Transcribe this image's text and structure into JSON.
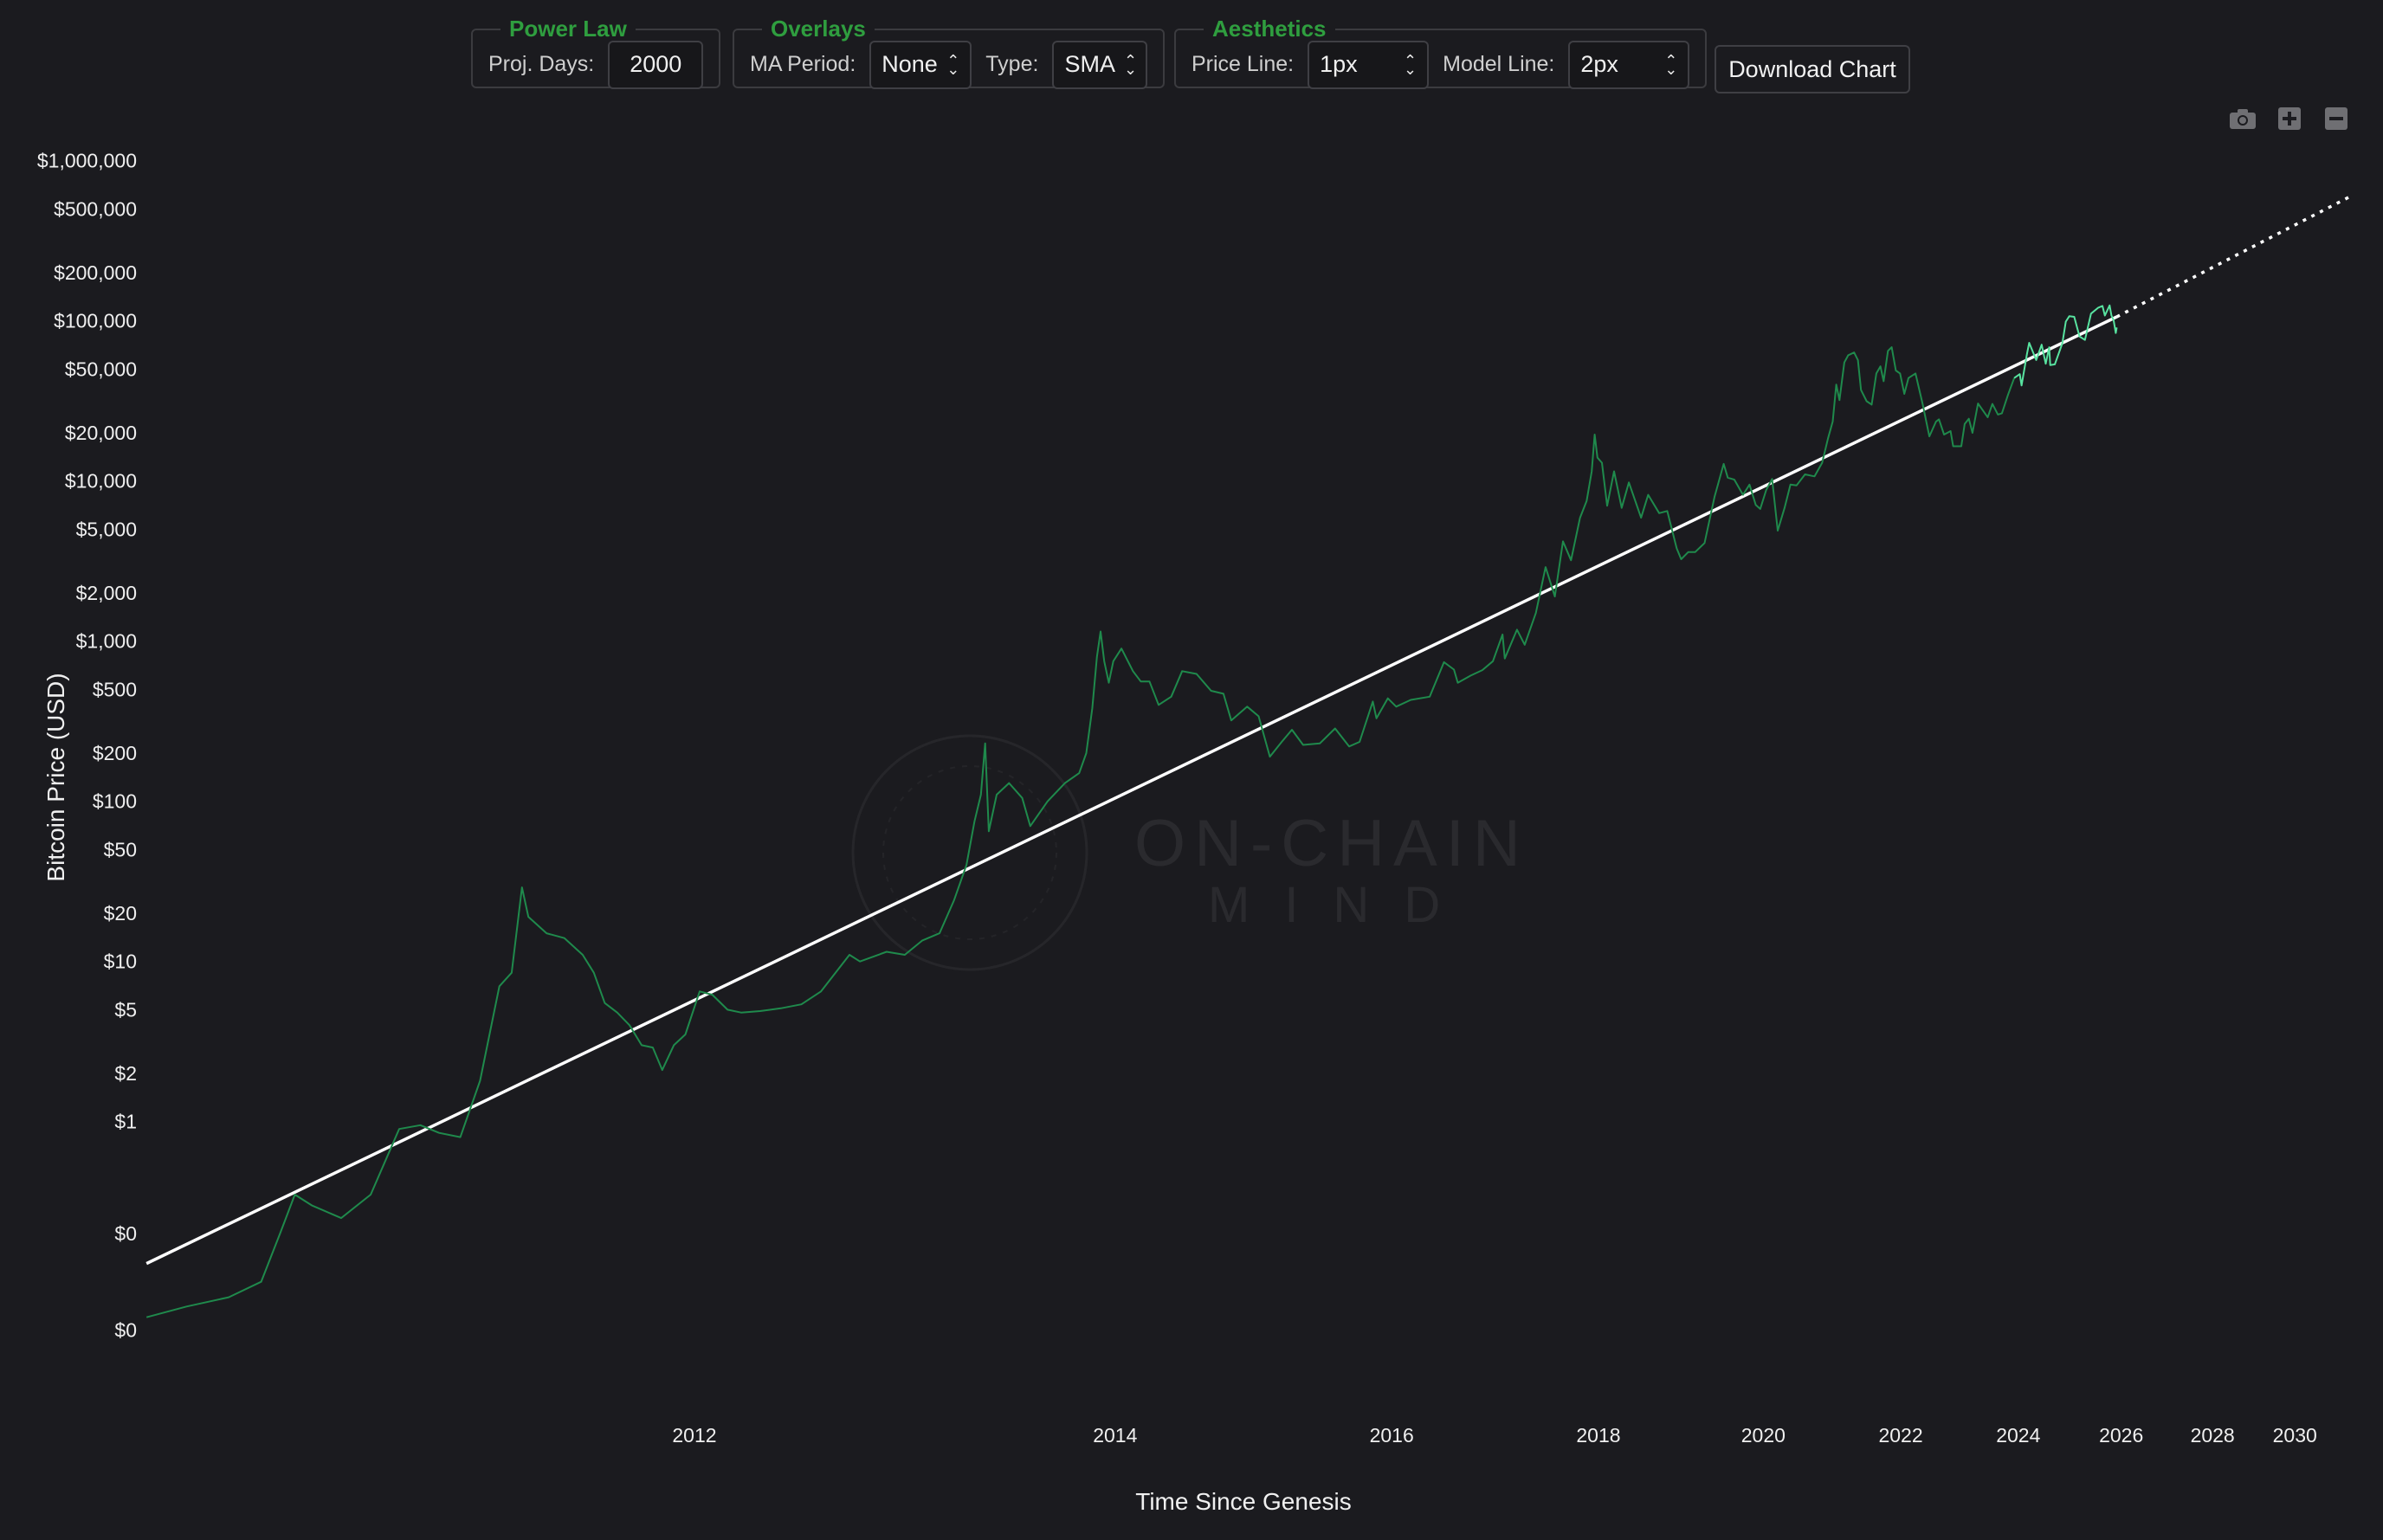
{
  "controls": {
    "power_law": {
      "legend": "Power Law",
      "proj_days_label": "Proj. Days:",
      "proj_days_value": "2000"
    },
    "overlays": {
      "legend": "Overlays",
      "ma_period_label": "MA Period:",
      "ma_period_value": "None",
      "type_label": "Type:",
      "type_value": "SMA"
    },
    "aesthetics": {
      "legend": "Aesthetics",
      "price_line_label": "Price Line:",
      "price_line_value": "1px",
      "model_line_label": "Model Line:",
      "model_line_value": "2px"
    },
    "download_label": "Download Chart"
  },
  "modebar": {
    "icons": [
      "camera-icon",
      "zoom-in-icon",
      "zoom-out-icon"
    ]
  },
  "watermark": {
    "line1": "ON-CHAIN",
    "line2": "MIND"
  },
  "colors": {
    "background": "#1b1b1f",
    "price": "#1f8a4c",
    "price_recent": "#58e3a0",
    "model": "#ffffff",
    "legend_green": "#2f9e3f"
  },
  "chart_data": {
    "type": "line",
    "title": "",
    "xlabel": "Time Since Genesis",
    "ylabel": "Bitcoin Price (USD)",
    "y_scale": "log",
    "x_scale": "log",
    "grid": false,
    "x_range": [
      "2010-07-01",
      "2031-06-01"
    ],
    "y_range": [
      0.02,
      2000000
    ],
    "x_ticks": [
      {
        "date": "2012-01-01",
        "label": "2012"
      },
      {
        "date": "2014-01-01",
        "label": "2014"
      },
      {
        "date": "2016-01-01",
        "label": "2016"
      },
      {
        "date": "2018-01-01",
        "label": "2018"
      },
      {
        "date": "2020-01-01",
        "label": "2020"
      },
      {
        "date": "2022-01-01",
        "label": "2022"
      },
      {
        "date": "2024-01-01",
        "label": "2024"
      },
      {
        "date": "2026-01-01",
        "label": "2026"
      },
      {
        "date": "2028-01-01",
        "label": "2028"
      },
      {
        "date": "2030-01-01",
        "label": "2030"
      }
    ],
    "y_ticks": [
      {
        "value": 0.05,
        "label": "$0"
      },
      {
        "value": 0.2,
        "label": "$0"
      },
      {
        "value": 1,
        "label": "$1"
      },
      {
        "value": 2,
        "label": "$2"
      },
      {
        "value": 5,
        "label": "$5"
      },
      {
        "value": 10,
        "label": "$10"
      },
      {
        "value": 20,
        "label": "$20"
      },
      {
        "value": 50,
        "label": "$50"
      },
      {
        "value": 100,
        "label": "$100"
      },
      {
        "value": 200,
        "label": "$200"
      },
      {
        "value": 500,
        "label": "$500"
      },
      {
        "value": 1000,
        "label": "$1,000"
      },
      {
        "value": 2000,
        "label": "$2,000"
      },
      {
        "value": 5000,
        "label": "$5,000"
      },
      {
        "value": 10000,
        "label": "$10,000"
      },
      {
        "value": 20000,
        "label": "$20,000"
      },
      {
        "value": 50000,
        "label": "$50,000"
      },
      {
        "value": 100000,
        "label": "$100,000"
      },
      {
        "value": 200000,
        "label": "$200,000"
      },
      {
        "value": 500000,
        "label": "$500,000"
      },
      {
        "value": 1000000,
        "label": "$1,000,000"
      }
    ],
    "series": [
      {
        "kind": "price",
        "points": [
          [
            "2010-07-18",
            0.06
          ],
          [
            "2010-08-15",
            0.07
          ],
          [
            "2010-09-15",
            0.08
          ],
          [
            "2010-10-10",
            0.1
          ],
          [
            "2010-10-25",
            0.2
          ],
          [
            "2010-11-06",
            0.35
          ],
          [
            "2010-11-20",
            0.3
          ],
          [
            "2010-12-15",
            0.25
          ],
          [
            "2011-01-10",
            0.35
          ],
          [
            "2011-02-05",
            0.9
          ],
          [
            "2011-02-25",
            0.95
          ],
          [
            "2011-03-15",
            0.85
          ],
          [
            "2011-04-05",
            0.8
          ],
          [
            "2011-04-25",
            1.8
          ],
          [
            "2011-05-15",
            7
          ],
          [
            "2011-05-28",
            8.5
          ],
          [
            "2011-06-08",
            29
          ],
          [
            "2011-06-15",
            19
          ],
          [
            "2011-07-05",
            15
          ],
          [
            "2011-07-25",
            14
          ],
          [
            "2011-08-15",
            11
          ],
          [
            "2011-08-28",
            8.5
          ],
          [
            "2011-09-10",
            5.5
          ],
          [
            "2011-09-25",
            4.8
          ],
          [
            "2011-10-10",
            4
          ],
          [
            "2011-10-25",
            3
          ],
          [
            "2011-11-08",
            2.9
          ],
          [
            "2011-11-20",
            2.1
          ],
          [
            "2011-12-05",
            3
          ],
          [
            "2011-12-20",
            3.5
          ],
          [
            "2012-01-08",
            6.5
          ],
          [
            "2012-01-25",
            6.2
          ],
          [
            "2012-02-15",
            5
          ],
          [
            "2012-03-05",
            4.8
          ],
          [
            "2012-04-01",
            4.9
          ],
          [
            "2012-05-01",
            5.1
          ],
          [
            "2012-06-01",
            5.4
          ],
          [
            "2012-07-01",
            6.5
          ],
          [
            "2012-08-15",
            11
          ],
          [
            "2012-09-01",
            10
          ],
          [
            "2012-10-15",
            11.5
          ],
          [
            "2012-11-15",
            11
          ],
          [
            "2012-12-15",
            13.5
          ],
          [
            "2013-01-15",
            15
          ],
          [
            "2013-02-10",
            24
          ],
          [
            "2013-03-05",
            40
          ],
          [
            "2013-03-20",
            75
          ],
          [
            "2013-04-01",
            110
          ],
          [
            "2013-04-09",
            230
          ],
          [
            "2013-04-16",
            65
          ],
          [
            "2013-05-01",
            110
          ],
          [
            "2013-05-25",
            130
          ],
          [
            "2013-06-20",
            105
          ],
          [
            "2013-07-06",
            70
          ],
          [
            "2013-08-10",
            100
          ],
          [
            "2013-09-15",
            130
          ],
          [
            "2013-10-15",
            150
          ],
          [
            "2013-10-30",
            200
          ],
          [
            "2013-11-12",
            380
          ],
          [
            "2013-11-22",
            800
          ],
          [
            "2013-11-30",
            1150
          ],
          [
            "2013-12-08",
            750
          ],
          [
            "2013-12-18",
            550
          ],
          [
            "2013-12-28",
            750
          ],
          [
            "2014-01-15",
            900
          ],
          [
            "2014-02-10",
            650
          ],
          [
            "2014-02-28",
            560
          ],
          [
            "2014-03-20",
            560
          ],
          [
            "2014-04-10",
            400
          ],
          [
            "2014-05-10",
            450
          ],
          [
            "2014-06-05",
            650
          ],
          [
            "2014-07-10",
            625
          ],
          [
            "2014-08-15",
            490
          ],
          [
            "2014-09-15",
            470
          ],
          [
            "2014-10-05",
            320
          ],
          [
            "2014-11-15",
            390
          ],
          [
            "2014-12-15",
            340
          ],
          [
            "2015-01-14",
            190
          ],
          [
            "2015-02-15",
            235
          ],
          [
            "2015-03-15",
            280
          ],
          [
            "2015-04-15",
            225
          ],
          [
            "2015-06-01",
            230
          ],
          [
            "2015-07-15",
            285
          ],
          [
            "2015-08-25",
            220
          ],
          [
            "2015-09-25",
            235
          ],
          [
            "2015-11-04",
            420
          ],
          [
            "2015-11-15",
            330
          ],
          [
            "2015-12-20",
            440
          ],
          [
            "2016-01-15",
            390
          ],
          [
            "2016-03-01",
            430
          ],
          [
            "2016-05-01",
            450
          ],
          [
            "2016-06-17",
            740
          ],
          [
            "2016-07-20",
            665
          ],
          [
            "2016-08-02",
            550
          ],
          [
            "2016-09-15",
            610
          ],
          [
            "2016-10-25",
            660
          ],
          [
            "2016-12-01",
            750
          ],
          [
            "2017-01-04",
            1100
          ],
          [
            "2017-01-12",
            780
          ],
          [
            "2017-02-25",
            1180
          ],
          [
            "2017-03-25",
            950
          ],
          [
            "2017-05-05",
            1500
          ],
          [
            "2017-06-10",
            2900
          ],
          [
            "2017-07-15",
            1900
          ],
          [
            "2017-08-15",
            4200
          ],
          [
            "2017-09-15",
            3200
          ],
          [
            "2017-10-20",
            5900
          ],
          [
            "2017-11-15",
            7500
          ],
          [
            "2017-12-05",
            11500
          ],
          [
            "2017-12-17",
            19500
          ],
          [
            "2017-12-28",
            14000
          ],
          [
            "2018-01-15",
            13000
          ],
          [
            "2018-02-05",
            7000
          ],
          [
            "2018-03-05",
            11500
          ],
          [
            "2018-04-05",
            6800
          ],
          [
            "2018-05-05",
            9800
          ],
          [
            "2018-06-25",
            5900
          ],
          [
            "2018-07-25",
            8200
          ],
          [
            "2018-09-10",
            6300
          ],
          [
            "2018-10-15",
            6500
          ],
          [
            "2018-11-25",
            3800
          ],
          [
            "2018-12-15",
            3250
          ],
          [
            "2019-01-15",
            3600
          ],
          [
            "2019-02-15",
            3600
          ],
          [
            "2019-03-30",
            4100
          ],
          [
            "2019-05-15",
            8000
          ],
          [
            "2019-06-26",
            12800
          ],
          [
            "2019-07-15",
            10500
          ],
          [
            "2019-08-15",
            10200
          ],
          [
            "2019-09-25",
            8200
          ],
          [
            "2019-10-26",
            9500
          ],
          [
            "2019-11-25",
            7100
          ],
          [
            "2019-12-17",
            6700
          ],
          [
            "2020-01-15",
            8800
          ],
          [
            "2020-02-13",
            10300
          ],
          [
            "2020-03-12",
            4900
          ],
          [
            "2020-04-15",
            6800
          ],
          [
            "2020-05-15",
            9500
          ],
          [
            "2020-06-15",
            9400
          ],
          [
            "2020-07-28",
            11000
          ],
          [
            "2020-09-15",
            10700
          ],
          [
            "2020-10-25",
            13000
          ],
          [
            "2020-11-25",
            18500
          ],
          [
            "2020-12-20",
            23500
          ],
          [
            "2021-01-08",
            40000
          ],
          [
            "2021-01-25",
            32000
          ],
          [
            "2021-02-20",
            55000
          ],
          [
            "2021-03-13",
            61000
          ],
          [
            "2021-04-14",
            63500
          ],
          [
            "2021-05-05",
            57000
          ],
          [
            "2021-05-22",
            37000
          ],
          [
            "2021-06-22",
            31500
          ],
          [
            "2021-07-20",
            30000
          ],
          [
            "2021-08-15",
            47000
          ],
          [
            "2021-09-07",
            52000
          ],
          [
            "2021-09-25",
            42000
          ],
          [
            "2021-10-20",
            65000
          ],
          [
            "2021-11-10",
            68500
          ],
          [
            "2021-12-04",
            49000
          ],
          [
            "2021-12-28",
            47000
          ],
          [
            "2022-01-22",
            35000
          ],
          [
            "2022-02-15",
            44000
          ],
          [
            "2022-03-28",
            47000
          ],
          [
            "2022-05-10",
            30000
          ],
          [
            "2022-06-18",
            19000
          ],
          [
            "2022-07-28",
            23500
          ],
          [
            "2022-08-15",
            24300
          ],
          [
            "2022-09-15",
            19500
          ],
          [
            "2022-10-25",
            20500
          ],
          [
            "2022-11-10",
            16500
          ],
          [
            "2022-12-30",
            16500
          ],
          [
            "2023-01-20",
            22700
          ],
          [
            "2023-02-15",
            24500
          ],
          [
            "2023-03-10",
            20000
          ],
          [
            "2023-04-14",
            30500
          ],
          [
            "2023-06-15",
            25000
          ],
          [
            "2023-07-15",
            30300
          ],
          [
            "2023-08-20",
            26000
          ],
          [
            "2023-09-15",
            26500
          ],
          [
            "2023-10-25",
            34500
          ],
          [
            "2023-12-05",
            44000
          ],
          [
            "2024-01-11",
            46500
          ],
          [
            "2024-01-23",
            39500
          ],
          [
            "2024-02-28",
            62000
          ],
          [
            "2024-03-14",
            73000
          ],
          [
            "2024-05-01",
            57000
          ],
          [
            "2024-06-07",
            71000
          ],
          [
            "2024-07-05",
            54000
          ],
          [
            "2024-07-29",
            68500
          ],
          [
            "2024-08-05",
            53000
          ],
          [
            "2024-09-06",
            53500
          ],
          [
            "2024-10-29",
            72500
          ],
          [
            "2024-11-22",
            99000
          ],
          [
            "2024-12-17",
            107000
          ],
          [
            "2025-01-21",
            106000
          ],
          [
            "2025-02-28",
            80000
          ],
          [
            "2025-04-08",
            76000
          ],
          [
            "2025-05-22",
            111000
          ],
          [
            "2025-07-14",
            121000
          ],
          [
            "2025-08-14",
            124000
          ],
          [
            "2025-09-01",
            108000
          ],
          [
            "2025-10-06",
            125000
          ],
          [
            "2025-10-20",
            108000
          ],
          [
            "2025-11-05",
            101000
          ],
          [
            "2025-11-21",
            84000
          ],
          [
            "2025-11-28",
            91000
          ]
        ]
      },
      {
        "kind": "model",
        "note": "power-law fit (solid) and projection (dotted)",
        "solid": [
          [
            "2010-07-18",
            0.13
          ],
          [
            "2025-11-28",
            106000
          ]
        ],
        "projection": [
          [
            "2025-11-28",
            106000
          ],
          [
            "2031-06-01",
            590000
          ]
        ]
      }
    ]
  }
}
